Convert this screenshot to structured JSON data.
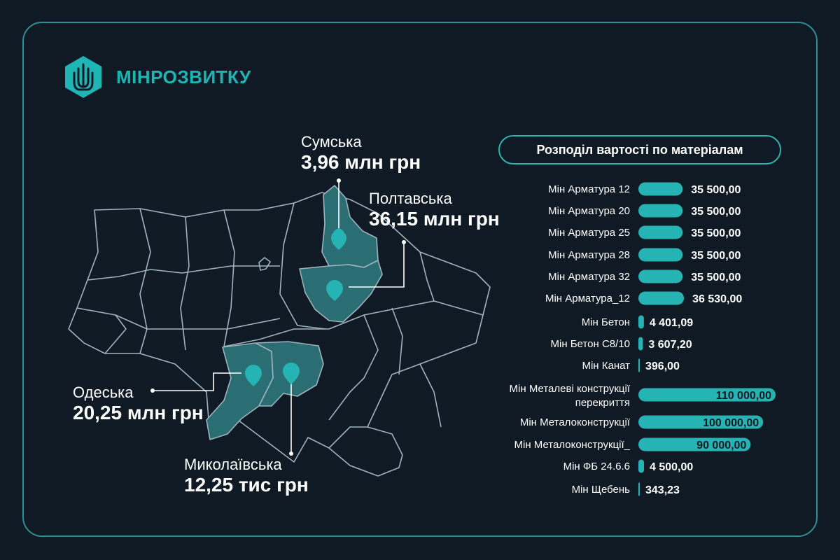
{
  "brand": {
    "name": "МІНРОЗВИТКУ",
    "emblem_icon": "trident-icon",
    "color": "#1fb5b5"
  },
  "colors": {
    "background": "#0f1a24",
    "accent": "#26b3b3",
    "map_stroke": "#9fb3bf",
    "highlight_fill": "#2a6e73"
  },
  "regions": [
    {
      "id": "sumska",
      "name": "Сумська",
      "amount": "3,96 млн грн"
    },
    {
      "id": "poltavska",
      "name": "Полтавська",
      "amount": "36,15 млн грн"
    },
    {
      "id": "odeska",
      "name": "Одеська",
      "amount": "20,25 млн грн"
    },
    {
      "id": "mykolaivska",
      "name": "Миколаївська",
      "amount": "12,25 тис грн"
    }
  ],
  "chart_data": {
    "type": "bar",
    "orientation": "horizontal",
    "title": "Розподіл вартості по матеріалам",
    "categories": [
      "Мін Арматура 12",
      "Мін Арматура 20",
      "Мін Арматура 25",
      "Мін Арматура 28",
      "Мін Арматура 32",
      "Мін Арматура_12",
      "Мін Бетон",
      "Мін Бетон С8/10",
      "Мін Канат",
      "Мін Металеві конструкції перекриття",
      "Мін Металоконструкції",
      "Мін Металоконструкції_",
      "Мін ФБ 24.6.6",
      "Мін Щебень"
    ],
    "values": [
      35500,
      35500,
      35500,
      35500,
      35500,
      36530,
      4401.09,
      3607.2,
      396,
      110000,
      100000,
      90000,
      4500,
      343.23
    ],
    "value_labels": [
      "35 500,00",
      "35 500,00",
      "35 500,00",
      "35 500,00",
      "35 500,00",
      "36 530,00",
      "4 401,09",
      "3 607,20",
      "396,00",
      "110 000,00",
      "100 000,00",
      "90 000,00",
      "4 500,00",
      "343,23"
    ],
    "xlim": [
      0,
      110000
    ],
    "bar_color": "#26b3b3",
    "grid": false,
    "legend": "none"
  }
}
